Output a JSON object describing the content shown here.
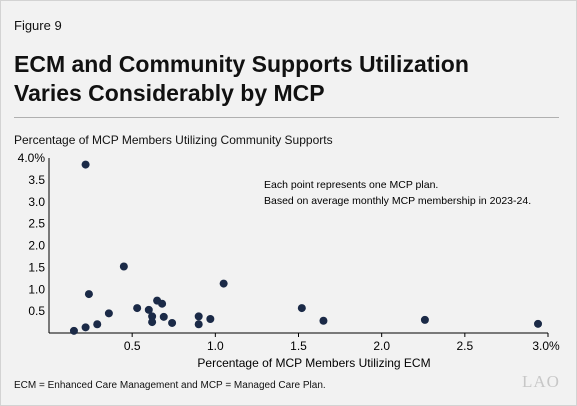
{
  "figure_label": "Figure 9",
  "title_line1": "ECM and Community Supports Utilization",
  "title_line2": "Varies Considerably by MCP",
  "footnote": "ECM = Enhanced Care Management and MCP = Managed Care Plan.",
  "logo_text": "LAO",
  "colors": {
    "point": "#1b2a47",
    "background": "#f2f2f2",
    "axis": "#000000"
  },
  "chart_data": {
    "type": "scatter",
    "title": "",
    "xlabel": "Percentage of MCP Members Utilizing ECM",
    "ylabel": "Percentage of MCP Members Utilizing Community Supports",
    "xlim": [
      0,
      3.0
    ],
    "ylim": [
      0,
      4.0
    ],
    "x_ticks": [
      "0.5",
      "1.0",
      "1.5",
      "2.0",
      "2.5",
      "3.0%"
    ],
    "x_tick_values": [
      0.5,
      1.0,
      1.5,
      2.0,
      2.5,
      3.0
    ],
    "y_ticks": [
      "0.5",
      "1.0",
      "1.5",
      "2.0",
      "2.5",
      "3.0",
      "3.5",
      "4.0%"
    ],
    "y_tick_values": [
      0.5,
      1.0,
      1.5,
      2.0,
      2.5,
      3.0,
      3.5,
      4.0
    ],
    "grid": false,
    "annotations": [
      "Each point represents one MCP plan.",
      "Based on average monthly MCP membership in 2023-24."
    ],
    "points": [
      {
        "x": 0.22,
        "y": 3.85
      },
      {
        "x": 0.45,
        "y": 1.52
      },
      {
        "x": 0.24,
        "y": 0.89
      },
      {
        "x": 0.36,
        "y": 0.45
      },
      {
        "x": 0.29,
        "y": 0.2
      },
      {
        "x": 0.22,
        "y": 0.13
      },
      {
        "x": 0.15,
        "y": 0.05
      },
      {
        "x": 0.53,
        "y": 0.57
      },
      {
        "x": 0.6,
        "y": 0.53
      },
      {
        "x": 0.62,
        "y": 0.38
      },
      {
        "x": 0.62,
        "y": 0.25
      },
      {
        "x": 0.65,
        "y": 0.74
      },
      {
        "x": 0.68,
        "y": 0.67
      },
      {
        "x": 0.69,
        "y": 0.37
      },
      {
        "x": 0.74,
        "y": 0.23
      },
      {
        "x": 0.9,
        "y": 0.38
      },
      {
        "x": 0.9,
        "y": 0.2
      },
      {
        "x": 0.97,
        "y": 0.32
      },
      {
        "x": 1.05,
        "y": 1.13
      },
      {
        "x": 1.52,
        "y": 0.57
      },
      {
        "x": 1.65,
        "y": 0.28
      },
      {
        "x": 2.26,
        "y": 0.3
      },
      {
        "x": 2.94,
        "y": 0.21
      }
    ]
  }
}
